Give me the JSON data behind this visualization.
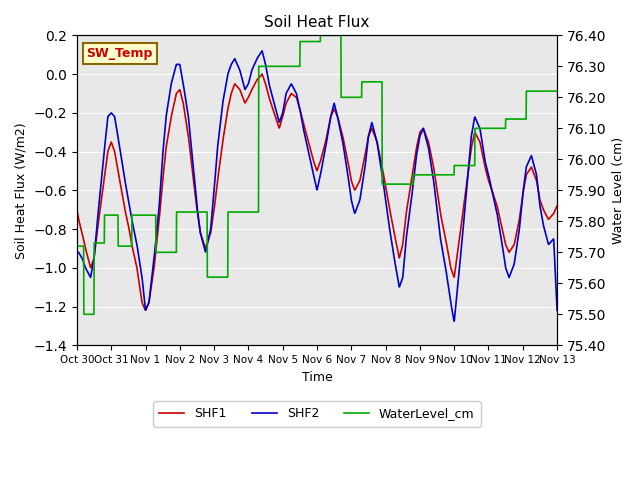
{
  "title": "Soil Heat Flux",
  "ylabel_left": "Soil Heat Flux (W/m2)",
  "ylabel_right": "Water Level (cm)",
  "xlabel": "Time",
  "ylim_left": [
    -1.4,
    0.2
  ],
  "ylim_right": [
    75.4,
    76.4
  ],
  "yticks_left": [
    -1.4,
    -1.2,
    -1.0,
    -0.8,
    -0.6,
    -0.4,
    -0.2,
    0.0,
    0.2
  ],
  "yticks_right": [
    75.4,
    75.5,
    75.6,
    75.7,
    75.8,
    75.9,
    76.0,
    76.1,
    76.2,
    76.3,
    76.4
  ],
  "xtick_labels": [
    "Oct 30",
    "Oct 31",
    "Nov 1",
    "Nov 2",
    "Nov 3",
    "Nov 4",
    "Nov 5",
    "Nov 6",
    "Nov 7",
    "Nov 8",
    "Nov 9",
    "Nov 10",
    "Nov 11",
    "Nov 12",
    "Nov 13"
  ],
  "color_shf1": "#cc0000",
  "color_shf2": "#0000cc",
  "color_water": "#00aa00",
  "color_bg": "#e8e8e8",
  "color_annotation_bg": "#ffffcc",
  "color_annotation_border": "#886600",
  "annotation_text": "SW_Temp",
  "shf1_t": [
    0.0,
    0.05,
    0.15,
    0.25,
    0.4,
    0.5,
    0.6,
    0.75,
    0.9,
    1.0,
    1.1,
    1.25,
    1.4,
    1.5,
    1.6,
    1.75,
    1.9,
    2.0,
    2.1,
    2.25,
    2.4,
    2.5,
    2.6,
    2.75,
    2.9,
    3.0,
    3.1,
    3.25,
    3.4,
    3.5,
    3.6,
    3.75,
    3.9,
    4.0,
    4.1,
    4.25,
    4.4,
    4.5,
    4.6,
    4.75,
    4.9,
    5.0,
    5.1,
    5.25,
    5.4,
    5.5,
    5.6,
    5.75,
    5.9,
    6.0,
    6.1,
    6.25,
    6.4,
    6.5,
    6.6,
    6.75,
    6.9,
    7.0,
    7.1,
    7.25,
    7.4,
    7.5,
    7.6,
    7.75,
    7.9,
    8.0,
    8.1,
    8.25,
    8.4,
    8.5,
    8.6,
    8.75,
    8.9,
    9.0,
    9.1,
    9.25,
    9.4,
    9.5,
    9.6,
    9.75,
    9.9,
    10.0,
    10.1,
    10.25,
    10.4,
    10.5,
    10.6,
    10.75,
    10.9,
    11.0,
    11.1,
    11.25,
    11.4,
    11.5,
    11.6,
    11.75,
    11.9,
    12.0,
    12.1,
    12.25,
    12.4,
    12.5,
    12.6,
    12.75,
    12.9,
    13.0,
    13.1,
    13.25,
    13.4,
    13.5,
    13.6,
    13.75,
    13.9,
    14.0
  ],
  "shf1_v": [
    -0.7,
    -0.75,
    -0.82,
    -0.9,
    -1.0,
    -0.95,
    -0.8,
    -0.6,
    -0.4,
    -0.35,
    -0.4,
    -0.55,
    -0.7,
    -0.78,
    -0.88,
    -1.0,
    -1.18,
    -1.22,
    -1.18,
    -1.0,
    -0.75,
    -0.55,
    -0.38,
    -0.22,
    -0.1,
    -0.08,
    -0.15,
    -0.32,
    -0.55,
    -0.7,
    -0.82,
    -0.9,
    -0.82,
    -0.7,
    -0.55,
    -0.35,
    -0.18,
    -0.1,
    -0.05,
    -0.08,
    -0.15,
    -0.12,
    -0.08,
    -0.03,
    0.0,
    -0.05,
    -0.12,
    -0.2,
    -0.28,
    -0.22,
    -0.15,
    -0.1,
    -0.12,
    -0.18,
    -0.25,
    -0.35,
    -0.45,
    -0.5,
    -0.45,
    -0.35,
    -0.22,
    -0.18,
    -0.22,
    -0.32,
    -0.45,
    -0.55,
    -0.6,
    -0.55,
    -0.42,
    -0.32,
    -0.28,
    -0.35,
    -0.48,
    -0.58,
    -0.68,
    -0.82,
    -0.95,
    -0.88,
    -0.72,
    -0.55,
    -0.38,
    -0.3,
    -0.28,
    -0.35,
    -0.48,
    -0.6,
    -0.72,
    -0.85,
    -1.0,
    -1.05,
    -0.92,
    -0.72,
    -0.52,
    -0.38,
    -0.3,
    -0.35,
    -0.48,
    -0.55,
    -0.6,
    -0.68,
    -0.8,
    -0.88,
    -0.92,
    -0.88,
    -0.75,
    -0.62,
    -0.52,
    -0.48,
    -0.55,
    -0.65,
    -0.7,
    -0.75,
    -0.72,
    -0.68
  ],
  "shf2_t": [
    0.0,
    0.05,
    0.15,
    0.25,
    0.4,
    0.5,
    0.6,
    0.75,
    0.9,
    1.0,
    1.1,
    1.25,
    1.4,
    1.5,
    1.6,
    1.75,
    1.9,
    2.0,
    2.1,
    2.25,
    2.4,
    2.5,
    2.6,
    2.75,
    2.9,
    3.0,
    3.1,
    3.25,
    3.4,
    3.5,
    3.6,
    3.75,
    3.9,
    4.0,
    4.1,
    4.25,
    4.4,
    4.5,
    4.6,
    4.75,
    4.9,
    5.0,
    5.1,
    5.25,
    5.4,
    5.5,
    5.6,
    5.75,
    5.9,
    6.0,
    6.1,
    6.25,
    6.4,
    6.5,
    6.6,
    6.75,
    6.9,
    7.0,
    7.1,
    7.25,
    7.4,
    7.5,
    7.6,
    7.75,
    7.9,
    8.0,
    8.1,
    8.25,
    8.4,
    8.5,
    8.6,
    8.75,
    8.9,
    9.0,
    9.1,
    9.25,
    9.4,
    9.5,
    9.6,
    9.75,
    9.9,
    10.0,
    10.1,
    10.25,
    10.4,
    10.5,
    10.6,
    10.75,
    10.9,
    11.0,
    11.1,
    11.25,
    11.4,
    11.5,
    11.6,
    11.75,
    11.9,
    12.0,
    12.1,
    12.25,
    12.4,
    12.5,
    12.6,
    12.75,
    12.9,
    13.0,
    13.1,
    13.25,
    13.4,
    13.5,
    13.6,
    13.75,
    13.9,
    14.0
  ],
  "shf2_v": [
    -0.92,
    -0.92,
    -0.95,
    -1.0,
    -1.05,
    -0.95,
    -0.75,
    -0.48,
    -0.22,
    -0.2,
    -0.22,
    -0.38,
    -0.55,
    -0.65,
    -0.75,
    -0.88,
    -1.05,
    -1.22,
    -1.18,
    -0.95,
    -0.68,
    -0.42,
    -0.22,
    -0.05,
    0.05,
    0.05,
    -0.05,
    -0.22,
    -0.5,
    -0.68,
    -0.82,
    -0.92,
    -0.8,
    -0.6,
    -0.38,
    -0.15,
    0.0,
    0.05,
    0.08,
    0.02,
    -0.08,
    -0.05,
    0.02,
    0.08,
    0.12,
    0.05,
    -0.05,
    -0.15,
    -0.25,
    -0.2,
    -0.1,
    -0.05,
    -0.1,
    -0.18,
    -0.28,
    -0.4,
    -0.52,
    -0.6,
    -0.52,
    -0.38,
    -0.22,
    -0.15,
    -0.22,
    -0.35,
    -0.52,
    -0.65,
    -0.72,
    -0.65,
    -0.48,
    -0.32,
    -0.25,
    -0.35,
    -0.52,
    -0.65,
    -0.78,
    -0.95,
    -1.1,
    -1.05,
    -0.85,
    -0.65,
    -0.42,
    -0.32,
    -0.28,
    -0.38,
    -0.55,
    -0.7,
    -0.85,
    -1.0,
    -1.18,
    -1.28,
    -1.1,
    -0.82,
    -0.52,
    -0.32,
    -0.22,
    -0.28,
    -0.45,
    -0.52,
    -0.6,
    -0.72,
    -0.88,
    -1.0,
    -1.05,
    -0.98,
    -0.8,
    -0.62,
    -0.48,
    -0.42,
    -0.52,
    -0.68,
    -0.78,
    -0.88,
    -0.85,
    -1.22
  ],
  "water_t": [
    0.0,
    0.08,
    0.2,
    0.35,
    0.5,
    0.65,
    0.8,
    1.0,
    1.2,
    1.4,
    1.6,
    1.8,
    2.0,
    2.3,
    2.6,
    2.9,
    3.2,
    3.5,
    3.8,
    4.1,
    4.4,
    4.7,
    5.0,
    5.3,
    5.6,
    5.9,
    6.2,
    6.5,
    6.8,
    7.1,
    7.4,
    7.7,
    8.0,
    8.3,
    8.6,
    8.9,
    9.2,
    9.5,
    9.8,
    10.1,
    10.4,
    10.7,
    11.0,
    11.3,
    11.6,
    11.9,
    12.2,
    12.5,
    12.8,
    13.1,
    13.4,
    13.7,
    14.0
  ],
  "water_v": [
    75.72,
    75.72,
    75.5,
    75.5,
    75.73,
    75.73,
    75.82,
    75.82,
    75.72,
    75.72,
    75.82,
    75.82,
    75.82,
    75.7,
    75.7,
    75.83,
    75.83,
    75.83,
    75.62,
    75.62,
    75.83,
    75.83,
    75.83,
    76.3,
    76.3,
    76.3,
    76.3,
    76.38,
    76.38,
    76.4,
    76.4,
    76.2,
    76.2,
    76.25,
    76.25,
    75.92,
    75.92,
    75.92,
    75.95,
    75.95,
    75.95,
    75.95,
    75.98,
    75.98,
    76.1,
    76.1,
    76.1,
    76.13,
    76.13,
    76.22,
    76.22,
    76.22,
    76.22
  ]
}
